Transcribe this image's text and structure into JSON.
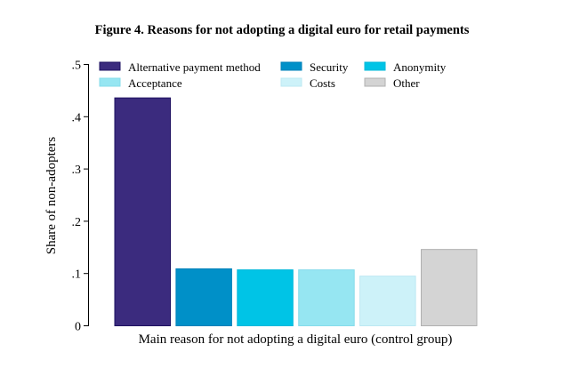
{
  "chart_data": {
    "type": "bar",
    "title": "Figure 4. Reasons for not adopting a digital euro for retail payments",
    "xlabel": "Main reason for not adopting a digital euro (control group)",
    "ylabel": "Share of non-adopters",
    "ylim": [
      0,
      0.5
    ],
    "yticks": [
      0,
      0.1,
      0.2,
      0.3,
      0.4,
      0.5
    ],
    "ytick_labels": [
      "0",
      ".1",
      ".2",
      ".3",
      ".4",
      ".5"
    ],
    "grid": false,
    "legend_position": "top",
    "series": [
      {
        "name": "Alternative payment method",
        "value": 0.436,
        "color": "#3b2b7e",
        "edge": "#1e1060"
      },
      {
        "name": "Security",
        "value": 0.109,
        "color": "#0090c8",
        "edge": "#0080b8"
      },
      {
        "name": "Anonymity",
        "value": 0.107,
        "color": "#00c4e6",
        "edge": "#00b8da"
      },
      {
        "name": "Acceptance",
        "value": 0.107,
        "color": "#96e6f2",
        "edge": "#86dcea"
      },
      {
        "name": "Costs",
        "value": 0.095,
        "color": "#cdf2f9",
        "edge": "#bde8f2"
      },
      {
        "name": "Other",
        "value": 0.146,
        "color": "#d4d4d4",
        "edge": "#b0b0b0"
      }
    ]
  }
}
